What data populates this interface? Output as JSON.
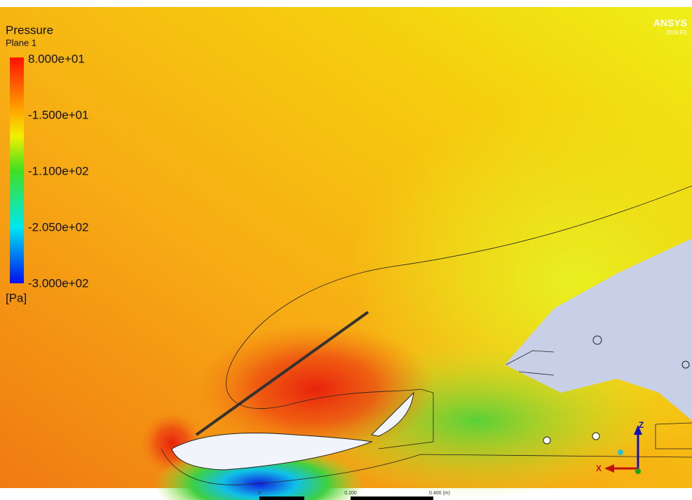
{
  "legend": {
    "title": "Pressure",
    "subtitle": "Plane 1",
    "labels": [
      "8.000e+01",
      "-1.500e+01",
      "-1.100e+02",
      "-2.050e+02",
      "-3.000e+02"
    ],
    "unit": "[Pa]"
  },
  "logo": {
    "brand": "ANSYS",
    "version": "2019 R1"
  },
  "scale_bar": {
    "labels": [
      "0",
      "0.200",
      "0.400 (m)"
    ]
  },
  "triad": {
    "z": "Z",
    "x": "X"
  }
}
